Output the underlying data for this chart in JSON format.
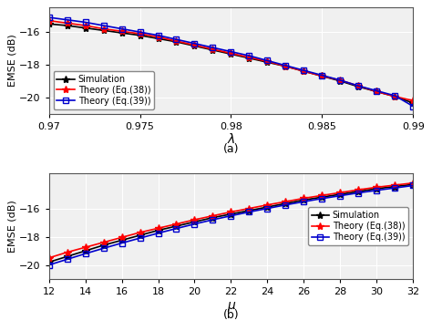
{
  "subplot_a": {
    "x": [
      0.97,
      0.971,
      0.972,
      0.973,
      0.974,
      0.975,
      0.976,
      0.977,
      0.978,
      0.979,
      0.98,
      0.981,
      0.982,
      0.983,
      0.984,
      0.985,
      0.986,
      0.987,
      0.988,
      0.989,
      0.99
    ],
    "sim": [
      -15.5,
      -15.6,
      -15.75,
      -15.9,
      -16.05,
      -16.2,
      -16.4,
      -16.6,
      -16.85,
      -17.1,
      -17.35,
      -17.6,
      -17.85,
      -18.1,
      -18.4,
      -18.7,
      -19.0,
      -19.35,
      -19.65,
      -19.95,
      -20.35
    ],
    "eq38": [
      -15.3,
      -15.45,
      -15.6,
      -15.8,
      -15.95,
      -16.1,
      -16.3,
      -16.55,
      -16.8,
      -17.05,
      -17.3,
      -17.55,
      -17.8,
      -18.1,
      -18.4,
      -18.7,
      -18.95,
      -19.3,
      -19.65,
      -19.95,
      -20.2
    ],
    "eq39": [
      -15.1,
      -15.25,
      -15.4,
      -15.6,
      -15.8,
      -16.0,
      -16.2,
      -16.45,
      -16.7,
      -16.95,
      -17.2,
      -17.45,
      -17.75,
      -18.05,
      -18.35,
      -18.65,
      -18.95,
      -19.3,
      -19.6,
      -19.9,
      -20.55
    ],
    "xlabel": "λ",
    "ylabel": "EMSE (dB)",
    "xlim": [
      0.97,
      0.99
    ],
    "ylim": [
      -21.0,
      -14.5
    ],
    "xticks": [
      0.97,
      0.975,
      0.98,
      0.985,
      0.99
    ],
    "yticks": [
      -20,
      -18,
      -16
    ],
    "label_a": "(a)"
  },
  "subplot_b": {
    "x": [
      12,
      13,
      14,
      15,
      16,
      17,
      18,
      19,
      20,
      21,
      22,
      23,
      24,
      25,
      26,
      27,
      28,
      29,
      30,
      31,
      32
    ],
    "sim": [
      -19.8,
      -19.4,
      -19.0,
      -18.6,
      -18.25,
      -17.9,
      -17.55,
      -17.25,
      -16.95,
      -16.65,
      -16.4,
      -16.15,
      -15.9,
      -15.65,
      -15.4,
      -15.2,
      -15.0,
      -14.8,
      -14.6,
      -14.45,
      -14.3
    ],
    "eq38": [
      -19.5,
      -19.1,
      -18.75,
      -18.4,
      -18.05,
      -17.7,
      -17.4,
      -17.1,
      -16.8,
      -16.52,
      -16.25,
      -16.0,
      -15.75,
      -15.52,
      -15.28,
      -15.08,
      -14.88,
      -14.68,
      -14.5,
      -14.35,
      -14.2
    ],
    "eq39": [
      -20.0,
      -19.6,
      -19.2,
      -18.82,
      -18.45,
      -18.1,
      -17.75,
      -17.42,
      -17.1,
      -16.8,
      -16.52,
      -16.25,
      -16.0,
      -15.75,
      -15.52,
      -15.3,
      -15.1,
      -14.9,
      -14.72,
      -14.55,
      -14.38
    ],
    "xlabel": "μ",
    "ylabel": "EMSE (dB)",
    "xlim": [
      12,
      32
    ],
    "ylim": [
      -21.0,
      -13.5
    ],
    "xticks": [
      12,
      14,
      16,
      18,
      20,
      22,
      24,
      26,
      28,
      30,
      32
    ],
    "yticks": [
      -20,
      -18,
      -16
    ],
    "label_b": "(b)"
  },
  "legend": {
    "sim_label": "Simulation",
    "eq38_label": "Theory (Eq.(38))",
    "eq39_label": "Theory (Eq.(39))"
  },
  "colors": {
    "sim": "#000000",
    "eq38": "#ff0000",
    "eq39": "#0000cd"
  },
  "bg_color": "#f0f0f0",
  "grid_color": "#ffffff",
  "linewidth": 1.2,
  "markersize": 5
}
